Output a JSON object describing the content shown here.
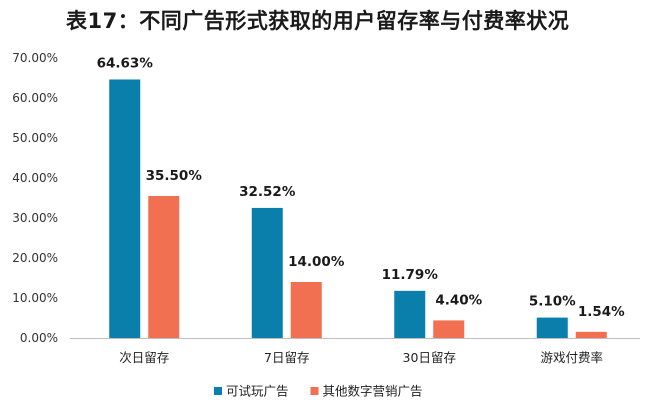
{
  "chart_data": {
    "type": "bar",
    "title": "表17：不同广告形式获取的用户留存率与付费率状况",
    "categories": [
      "次日留存",
      "7日留存",
      "30日留存",
      "游戏付费率"
    ],
    "series": [
      {
        "name": "可试玩广告",
        "color": "#0b7fab",
        "values": [
          64.63,
          32.52,
          11.79,
          5.1
        ],
        "labels": [
          "64.63%",
          "32.52%",
          "11.79%",
          "5.10%"
        ]
      },
      {
        "name": "其他数字营销广告",
        "color": "#f27052",
        "values": [
          35.5,
          14.0,
          4.4,
          1.54
        ],
        "labels": [
          "35.50%",
          "14.00%",
          "4.40%",
          "1.54%"
        ]
      }
    ],
    "ylim": [
      0,
      70
    ],
    "yticks": [
      0,
      10,
      20,
      30,
      40,
      50,
      60,
      70
    ],
    "ytick_labels": [
      "0.00%",
      "10.00%",
      "20.00%",
      "30.00%",
      "40.00%",
      "50.00%",
      "60.00%",
      "70.00%"
    ],
    "xlabel": "",
    "ylabel": "",
    "legend_position": "bottom-center",
    "grid": false
  }
}
